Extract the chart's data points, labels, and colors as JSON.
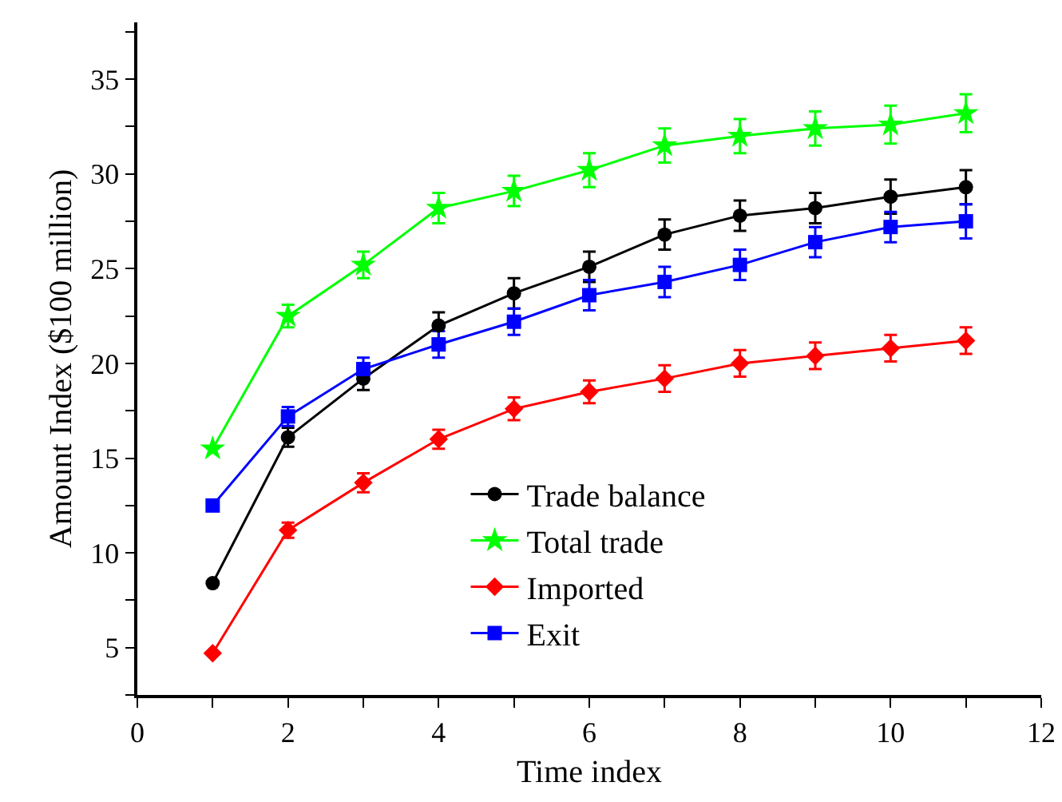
{
  "chart_data": {
    "type": "line",
    "xlabel": "Time index",
    "ylabel": "Amount Index ($100 million)",
    "x": [
      1,
      2,
      3,
      4,
      5,
      6,
      7,
      8,
      9,
      10,
      11
    ],
    "xlim": [
      0,
      12
    ],
    "xticks": [
      0,
      {
        "value": 1,
        "label": null
      },
      2,
      {
        "value": 3,
        "label": null
      },
      4,
      {
        "value": 5,
        "label": null
      },
      6,
      {
        "value": 7,
        "label": null
      },
      8,
      {
        "value": 9,
        "label": null
      },
      10,
      {
        "value": 11,
        "label": null
      },
      12
    ],
    "ylim": [
      2.5,
      38
    ],
    "yticks": [
      {
        "value": 2.5,
        "label": null
      },
      5,
      {
        "value": 7.5,
        "label": null
      },
      10,
      {
        "value": 12.5,
        "label": null
      },
      15,
      {
        "value": 17.5,
        "label": null
      },
      20,
      {
        "value": 22.5,
        "label": null
      },
      25,
      {
        "value": 27.5,
        "label": null
      },
      30,
      {
        "value": 32.5,
        "label": null
      },
      35,
      {
        "value": 37.5,
        "label": null
      }
    ],
    "grid": false,
    "legend": "center",
    "line_style": "solid",
    "series": [
      {
        "name": "Trade balance",
        "color": "#000000",
        "marker": "circle",
        "values": [
          8.4,
          16.1,
          19.2,
          22.0,
          23.7,
          25.1,
          26.8,
          27.8,
          28.2,
          28.8,
          29.3
        ],
        "errors": [
          null,
          0.5,
          0.6,
          0.7,
          0.8,
          0.8,
          0.8,
          0.8,
          0.8,
          0.9,
          0.9
        ]
      },
      {
        "name": "Total trade",
        "color": "#00ff00",
        "marker": "star",
        "values": [
          15.5,
          22.5,
          25.2,
          28.2,
          29.1,
          30.2,
          31.5,
          32.0,
          32.4,
          32.6,
          33.2
        ],
        "errors": [
          null,
          0.6,
          0.7,
          0.8,
          0.8,
          0.9,
          0.9,
          0.9,
          0.9,
          1.0,
          1.0
        ]
      },
      {
        "name": "Imported",
        "color": "#ff0000",
        "marker": "diamond",
        "values": [
          4.7,
          11.2,
          13.7,
          16.0,
          17.6,
          18.5,
          19.2,
          20.0,
          20.4,
          20.8,
          21.2
        ],
        "errors": [
          null,
          0.4,
          0.5,
          0.5,
          0.6,
          0.6,
          0.7,
          0.7,
          0.7,
          0.7,
          0.7
        ]
      },
      {
        "name": "Exit",
        "color": "#0000ff",
        "marker": "square",
        "values": [
          12.5,
          17.2,
          19.7,
          21.0,
          22.2,
          23.6,
          24.3,
          25.2,
          26.4,
          27.2,
          27.5
        ],
        "errors": [
          null,
          0.5,
          0.6,
          0.7,
          0.7,
          0.8,
          0.8,
          0.8,
          0.8,
          0.8,
          0.9
        ]
      }
    ]
  }
}
